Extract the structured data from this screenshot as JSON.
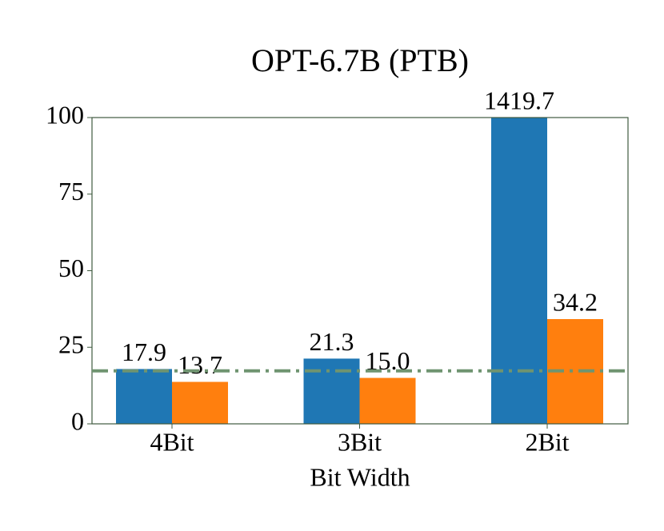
{
  "chart_data": {
    "type": "bar",
    "title": "OPT-6.7B (PTB)",
    "x_label": "Bit Width",
    "categories": [
      "4Bit",
      "3Bit",
      "2Bit"
    ],
    "series": [
      {
        "color": "#1f77b4",
        "values": [
          17.9,
          21.3,
          1419.7
        ],
        "value_labels": [
          "17.9",
          "21.3",
          "1419.7"
        ]
      },
      {
        "color": "#ff7f0e",
        "values": [
          13.7,
          15.0,
          34.2
        ],
        "value_labels": [
          "13.7",
          "15.0",
          "34.2"
        ]
      }
    ],
    "reference_line": {
      "value": 17.3,
      "color": "#6f9470"
    },
    "ylim": [
      0,
      100
    ],
    "yticks": [
      0,
      25,
      50,
      75,
      100
    ]
  }
}
